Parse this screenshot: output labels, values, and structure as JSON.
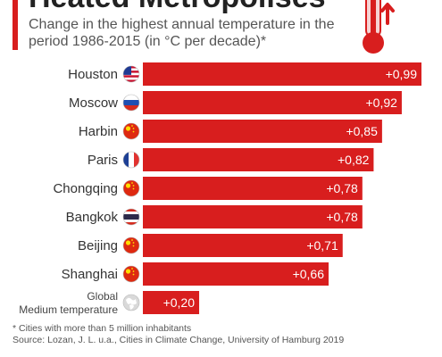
{
  "header": {
    "title": "Heated Metropolises",
    "subtitle": "Change in the highest annual temperature in the period 1986-2015 (in °C per decade)*"
  },
  "colors": {
    "accent": "#d81e1e",
    "bar": "#d81e1e",
    "text": "#333333"
  },
  "chart_data": {
    "type": "bar",
    "orientation": "horizontal",
    "categories": [
      "Houston",
      "Moscow",
      "Harbin",
      "Paris",
      "Chongqing",
      "Bangkok",
      "Beijing",
      "Shanghai",
      "Global Medium temperature"
    ],
    "category_lines": [
      [
        "Houston"
      ],
      [
        "Moscow"
      ],
      [
        "Harbin"
      ],
      [
        "Paris"
      ],
      [
        "Chongqing"
      ],
      [
        "Bangkok"
      ],
      [
        "Beijing"
      ],
      [
        "Shanghai"
      ],
      [
        "Global",
        "Medium temperature"
      ]
    ],
    "values": [
      0.99,
      0.92,
      0.85,
      0.82,
      0.78,
      0.78,
      0.71,
      0.66,
      0.2
    ],
    "value_labels": [
      "+0,99",
      "+0,92",
      "+0,85",
      "+0,82",
      "+0,78",
      "+0,78",
      "+0,71",
      "+0,66",
      "+0,20"
    ],
    "flags": [
      "us-flag-icon",
      "russia-flag-icon",
      "china-flag-icon",
      "france-flag-icon",
      "china-flag-icon",
      "thailand-flag-icon",
      "china-flag-icon",
      "china-flag-icon",
      "globe-icon"
    ],
    "xlim": [
      0,
      0.99
    ],
    "grid": false,
    "legend": "none"
  },
  "footnote": {
    "note": "* Cities with more than 5 million inhabitants",
    "source": "Source: Lozan, J. L. u.a., Cities in Climate Change, University of Hamburg 2019"
  }
}
